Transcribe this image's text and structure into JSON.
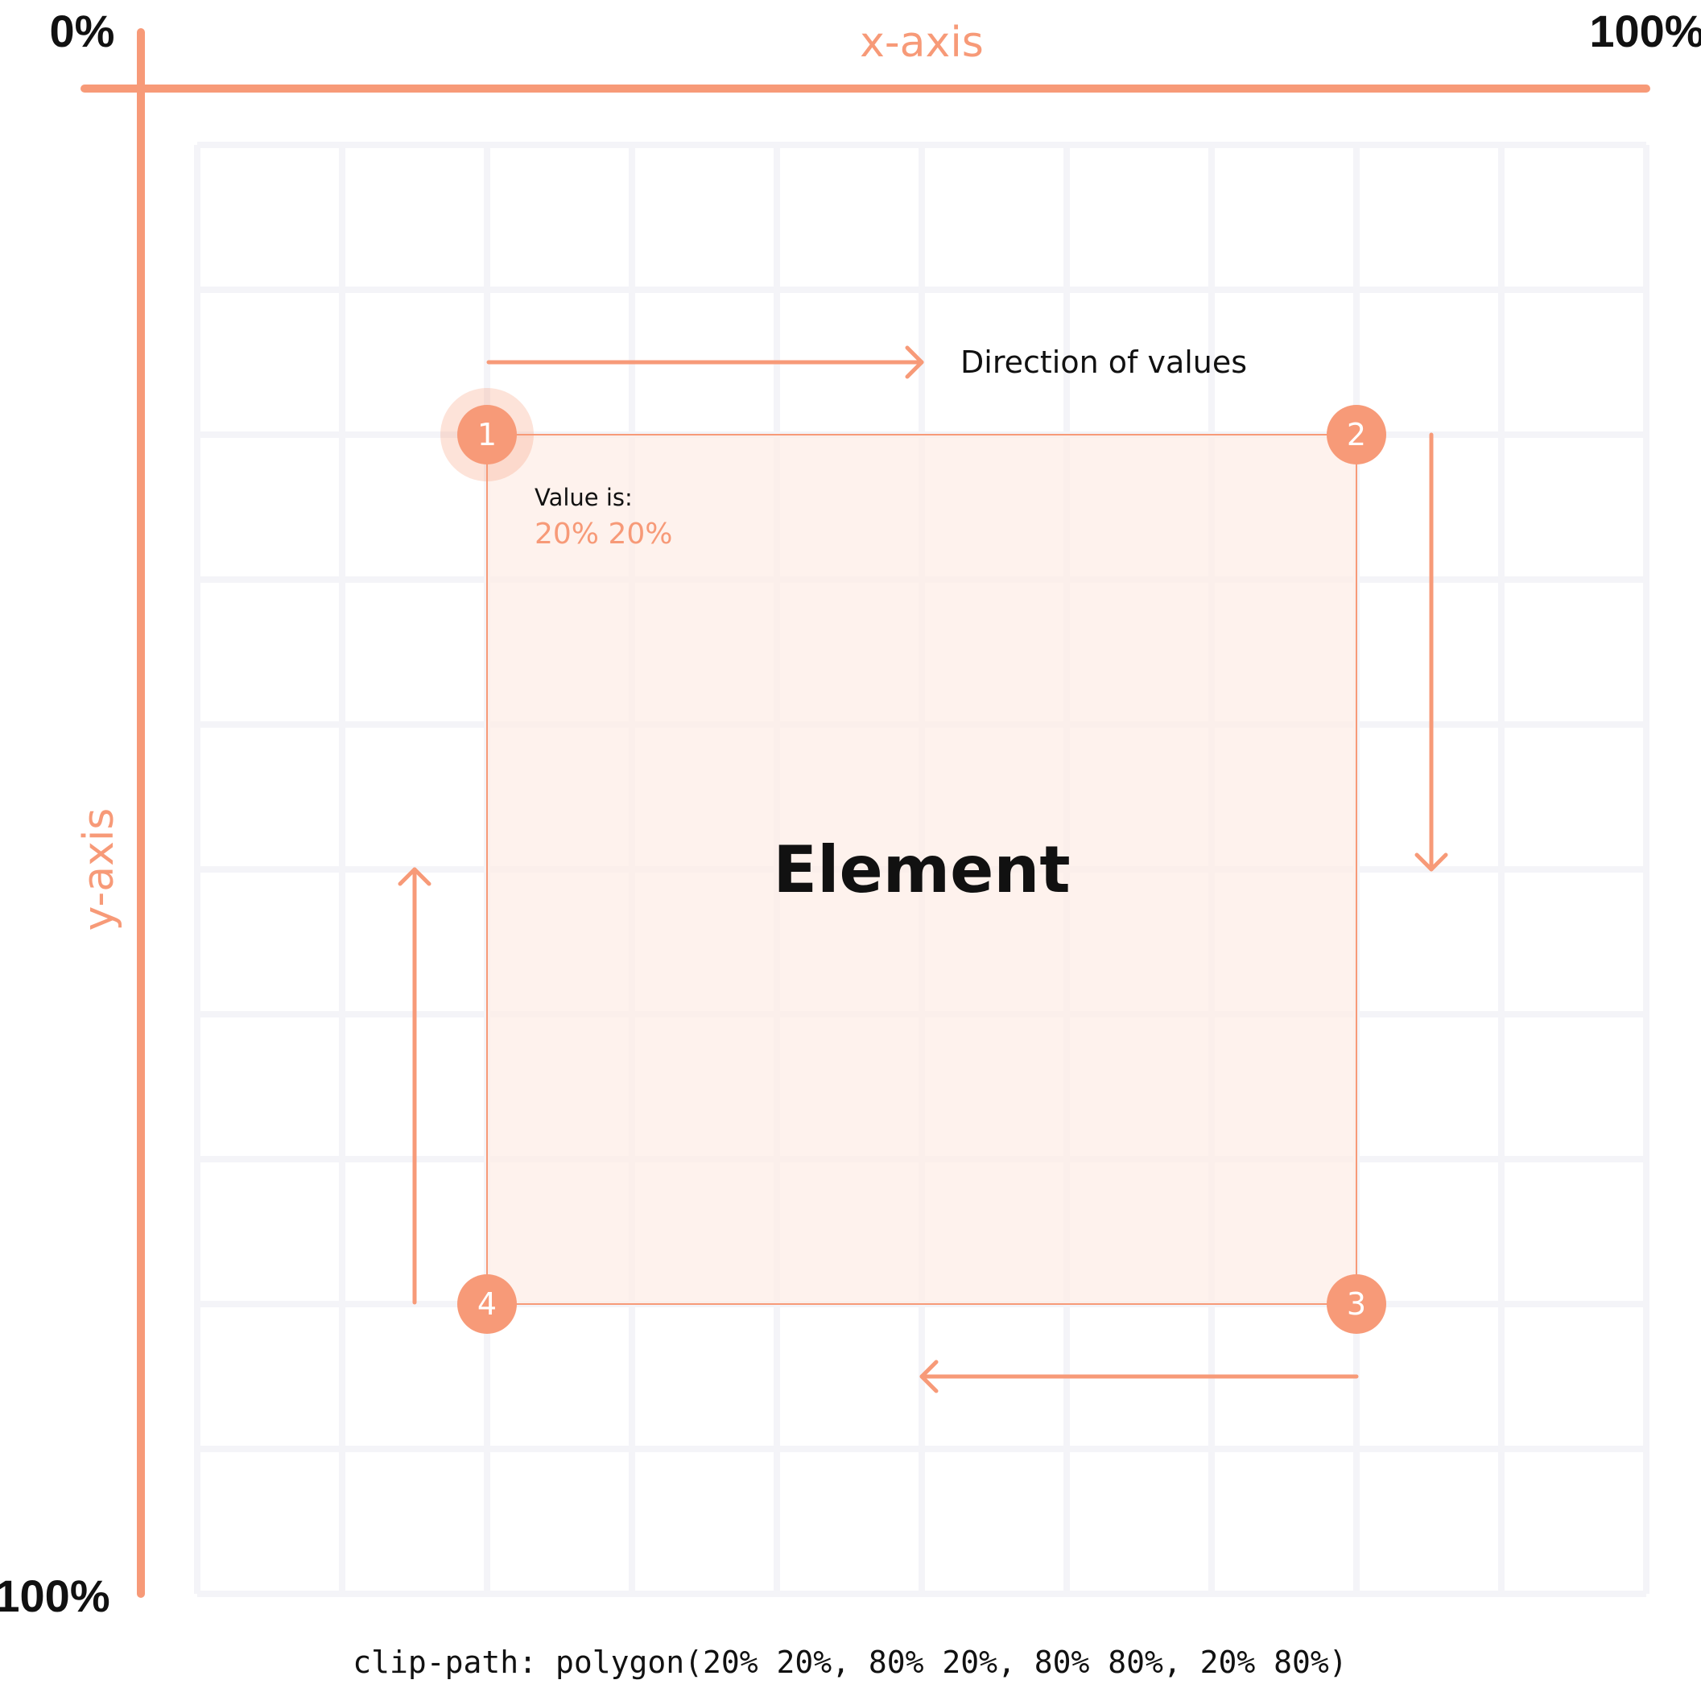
{
  "axes": {
    "x_label": "x-axis",
    "y_label": "y-axis",
    "origin_label": "0%",
    "x_end_label": "100%",
    "y_end_label": "100%"
  },
  "grid": {
    "columns": 10,
    "rows": 10
  },
  "element_label": "Element",
  "direction_label": "Direction of values",
  "value": {
    "label": "Value is:",
    "text": "20% 20%"
  },
  "points": [
    {
      "number": "1",
      "x": 20,
      "y": 20,
      "active": true
    },
    {
      "number": "2",
      "x": 80,
      "y": 20,
      "active": false
    },
    {
      "number": "3",
      "x": 80,
      "y": 80,
      "active": false
    },
    {
      "number": "4",
      "x": 20,
      "y": 80,
      "active": false
    }
  ],
  "code": "clip-path: polygon(20% 20%, 80% 20%, 80% 80%, 20% 80%)",
  "colors": {
    "accent": "#f79a78",
    "region_fill": "#fdeee7",
    "grid": "#f4f4f8",
    "text": "#111111"
  }
}
